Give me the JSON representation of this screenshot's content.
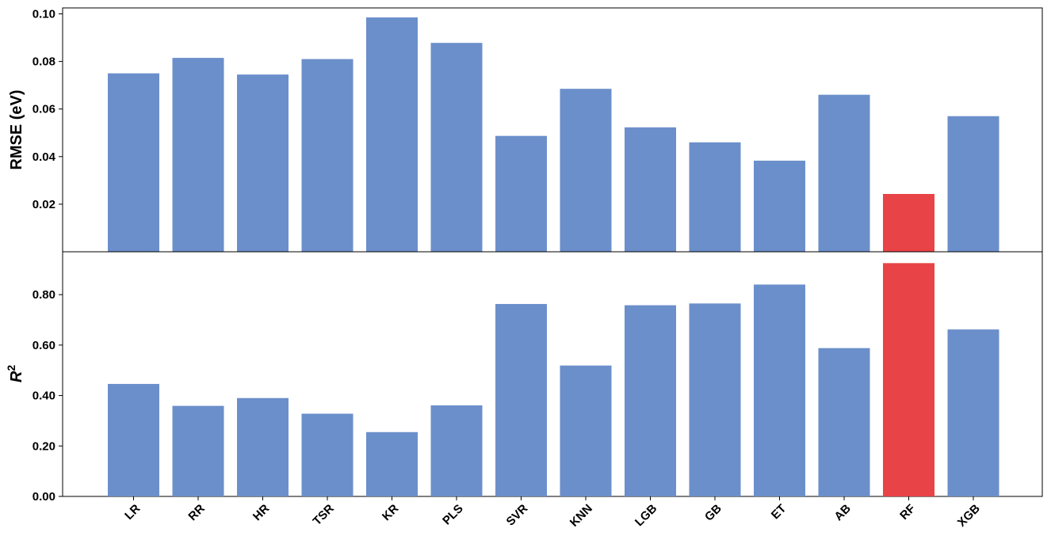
{
  "chart_data": {
    "type": "bar",
    "categories": [
      "LR",
      "RR",
      "HR",
      "TSR",
      "KR",
      "PLS",
      "SVR",
      "KNN",
      "LGB",
      "GB",
      "ET",
      "AB",
      "RF",
      "XGB"
    ],
    "highlight_category": "RF",
    "colors": {
      "default": "#6b8fca",
      "highlight": "#e84346"
    },
    "panels": [
      {
        "ylabel": "RMSE (eV)",
        "ylim": [
          0.0,
          0.1025
        ],
        "yticks": [
          0.02,
          0.04,
          0.06,
          0.08,
          0.1
        ],
        "ytick_labels": [
          "0.02",
          "0.04",
          "0.06",
          "0.08",
          "0.10"
        ],
        "values": [
          0.075,
          0.0815,
          0.0745,
          0.081,
          0.0985,
          0.0878,
          0.0487,
          0.0685,
          0.0523,
          0.046,
          0.0383,
          0.066,
          0.0243,
          0.057
        ]
      },
      {
        "ylabel": "R2",
        "ylim": [
          0.0,
          0.97
        ],
        "yticks": [
          0.0,
          0.2,
          0.4,
          0.6,
          0.8
        ],
        "ytick_labels": [
          "0.00",
          "0.20",
          "0.40",
          "0.60",
          "0.80"
        ],
        "values": [
          0.446,
          0.359,
          0.39,
          0.328,
          0.255,
          0.361,
          0.763,
          0.519,
          0.758,
          0.765,
          0.84,
          0.588,
          0.925,
          0.662
        ]
      }
    ]
  }
}
